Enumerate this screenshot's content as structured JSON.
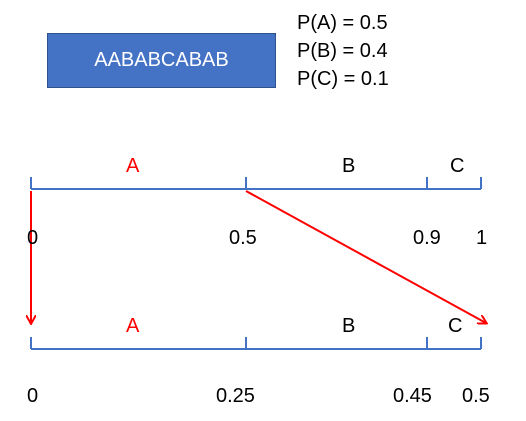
{
  "sequence": "AABABCABAB",
  "probabilities": [
    {
      "text": "P(A) = 0.5"
    },
    {
      "text": "P(B) = 0.4"
    },
    {
      "text": "P(C) = 0.1"
    }
  ],
  "top_interval": {
    "segments": [
      {
        "label": "A",
        "color": "#FF0000"
      },
      {
        "label": "B",
        "color": "#000000"
      },
      {
        "label": "C",
        "color": "#000000"
      }
    ],
    "ticks": [
      "0",
      "0.5",
      "0.9",
      "1"
    ]
  },
  "bottom_interval": {
    "segments": [
      {
        "label": "A",
        "color": "#FF0000"
      },
      {
        "label": "B",
        "color": "#000000"
      },
      {
        "label": "C",
        "color": "#000000"
      }
    ],
    "ticks": [
      "0",
      "0.25",
      "0.45",
      "0.5"
    ]
  },
  "colors": {
    "box_fill": "#4472C4",
    "line": "#4472C4",
    "arrow": "#FF0000"
  }
}
